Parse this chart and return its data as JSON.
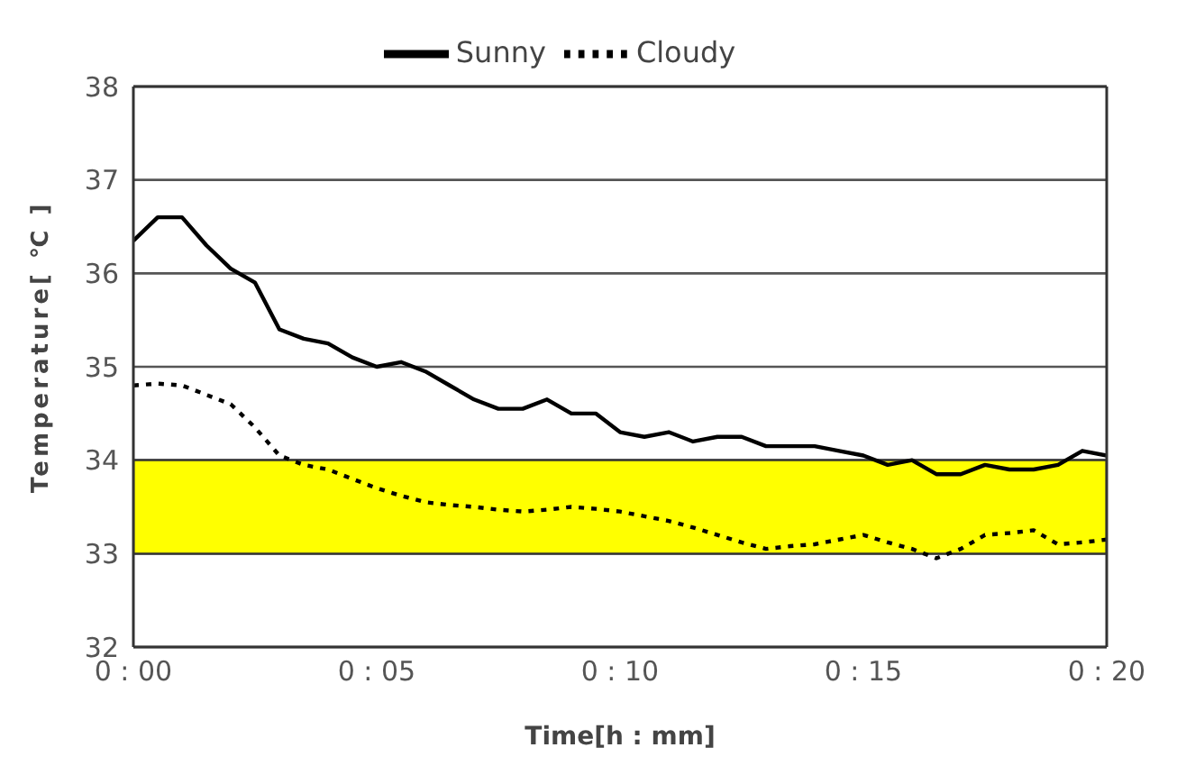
{
  "chart_data": {
    "type": "line",
    "xlabel": "Time[h : mm]",
    "ylabel": "Temperature[ ℃ ]",
    "categories": [
      "0 : 00",
      null,
      null,
      null,
      null,
      null,
      null,
      null,
      null,
      null,
      "0 : 05",
      null,
      null,
      null,
      null,
      null,
      null,
      null,
      null,
      null,
      "0 : 10",
      null,
      null,
      null,
      null,
      null,
      null,
      null,
      null,
      null,
      "0 : 15",
      null,
      null,
      null,
      null,
      null,
      null,
      null,
      null,
      null,
      "0 : 20"
    ],
    "ylim": [
      32,
      38
    ],
    "yticks": [
      32,
      33,
      34,
      35,
      36,
      37,
      38
    ],
    "grid": "y",
    "legend": "top",
    "marker": "none",
    "bands": [
      {
        "axis": "y",
        "from": 33,
        "to": 34,
        "color": "#ffff00"
      }
    ],
    "series": [
      {
        "name": "Sunny",
        "color": "#000000",
        "line_style": "solid",
        "values": [
          36.35,
          36.6,
          36.6,
          36.3,
          36.05,
          35.9,
          35.4,
          35.3,
          35.25,
          35.1,
          35.0,
          35.05,
          34.95,
          34.8,
          34.65,
          34.55,
          34.55,
          34.65,
          34.5,
          34.5,
          34.3,
          34.25,
          34.3,
          34.2,
          34.25,
          34.25,
          34.15,
          34.15,
          34.15,
          34.1,
          34.05,
          33.95,
          34.0,
          33.85,
          33.85,
          33.95,
          33.9,
          33.9,
          33.95,
          34.1,
          34.05
        ]
      },
      {
        "name": "Cloudy",
        "color": "#000000",
        "line_style": "dotted",
        "values": [
          34.8,
          34.82,
          34.8,
          34.7,
          34.6,
          34.35,
          34.05,
          33.95,
          33.9,
          33.8,
          33.7,
          33.62,
          33.55,
          33.52,
          33.5,
          33.47,
          33.45,
          33.47,
          33.5,
          33.48,
          33.45,
          33.4,
          33.35,
          33.28,
          33.2,
          33.12,
          33.05,
          33.08,
          33.1,
          33.15,
          33.2,
          33.12,
          33.05,
          32.95,
          33.05,
          33.2,
          33.22,
          33.25,
          33.1,
          33.12,
          33.15
        ]
      }
    ]
  }
}
